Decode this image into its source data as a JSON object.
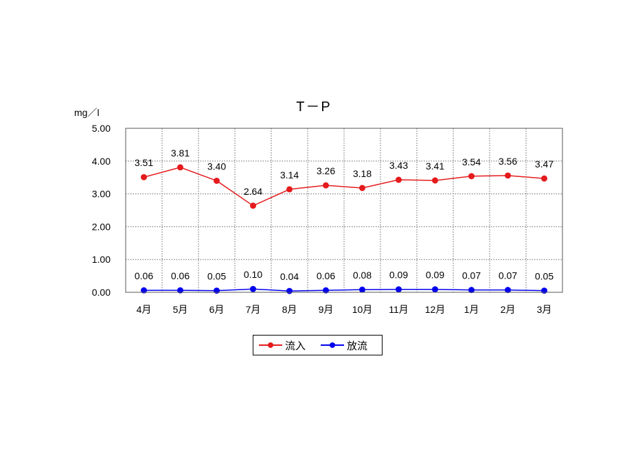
{
  "chart_data": {
    "type": "line",
    "title": "T－P",
    "ylabel": "mg／l",
    "categories": [
      "4月",
      "5月",
      "6月",
      "7月",
      "8月",
      "9月",
      "10月",
      "11月",
      "12月",
      "1月",
      "2月",
      "3月"
    ],
    "ylim": [
      0,
      5
    ],
    "yticks": [
      "0.00",
      "1.00",
      "2.00",
      "3.00",
      "4.00",
      "5.00"
    ],
    "grid": true,
    "legend_position": "bottom",
    "series": [
      {
        "name": "流入",
        "color": "#e41a1c",
        "values": [
          3.51,
          3.81,
          3.4,
          2.64,
          3.14,
          3.26,
          3.18,
          3.43,
          3.41,
          3.54,
          3.56,
          3.47
        ],
        "labels": [
          "3.51",
          "3.81",
          "3.40",
          "2.64",
          "3.14",
          "3.26",
          "3.18",
          "3.43",
          "3.41",
          "3.54",
          "3.56",
          "3.47"
        ]
      },
      {
        "name": "放流",
        "color": "#0000ee",
        "values": [
          0.06,
          0.06,
          0.05,
          0.1,
          0.04,
          0.06,
          0.08,
          0.09,
          0.09,
          0.07,
          0.07,
          0.05
        ],
        "labels": [
          "0.06",
          "0.06",
          "0.05",
          "0.10",
          "0.04",
          "0.06",
          "0.08",
          "0.09",
          "0.09",
          "0.07",
          "0.07",
          "0.05"
        ]
      }
    ]
  }
}
